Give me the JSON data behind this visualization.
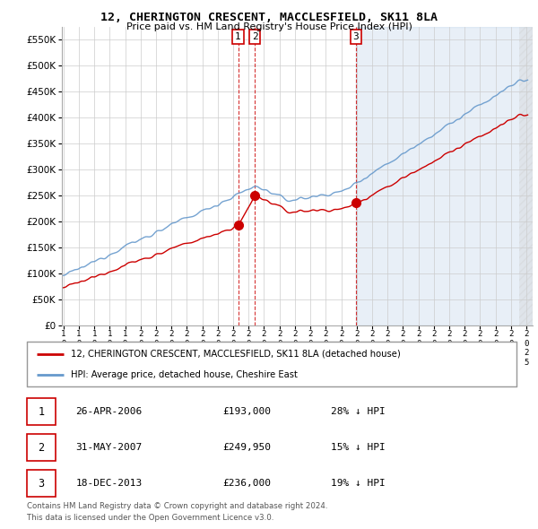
{
  "title": "12, CHERINGTON CRESCENT, MACCLESFIELD, SK11 8LA",
  "subtitle": "Price paid vs. HM Land Registry's House Price Index (HPI)",
  "ylim": [
    0,
    575000
  ],
  "xlim_start": 1994.9,
  "xlim_end": 2025.4,
  "sales": [
    {
      "label": "1",
      "date_num": 2006.32,
      "price": 193000
    },
    {
      "label": "2",
      "date_num": 2007.41,
      "price": 249950
    },
    {
      "label": "3",
      "date_num": 2013.96,
      "price": 236000
    }
  ],
  "legend_line1": "12, CHERINGTON CRESCENT, MACCLESFIELD, SK11 8LA (detached house)",
  "legend_line2": "HPI: Average price, detached house, Cheshire East",
  "table_rows": [
    {
      "num": "1",
      "date": "26-APR-2006",
      "price": "£193,000",
      "pct": "28% ↓ HPI"
    },
    {
      "num": "2",
      "date": "31-MAY-2007",
      "price": "£249,950",
      "pct": "15% ↓ HPI"
    },
    {
      "num": "3",
      "date": "18-DEC-2013",
      "price": "£236,000",
      "pct": "19% ↓ HPI"
    }
  ],
  "footnote1": "Contains HM Land Registry data © Crown copyright and database right 2024.",
  "footnote2": "This data is licensed under the Open Government Licence v3.0.",
  "red_color": "#cc0000",
  "blue_color": "#6699cc",
  "blue_fill": "#ddeeff",
  "box_color": "#cc0000",
  "grid_color": "#cccccc",
  "background_color": "#ffffff"
}
